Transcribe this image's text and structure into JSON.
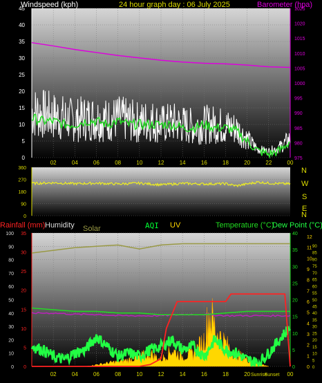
{
  "header": {
    "title": "24 hour graph day : 06 July 2025",
    "windspeed_label": "Windspeed (kph)",
    "barometer_label": "Barometer (hpa)"
  },
  "bottom_labels": {
    "rainfall": "Rainfall (mm)",
    "humidity": "Humidity",
    "solar": "Solar",
    "aqi": "AQI",
    "uv": "UV",
    "temperature": "Temperature (°C)",
    "dewpoint": "Dew Point (°C)",
    "sunrise": "Sunrise",
    "sunset": "Sunset"
  },
  "compass": [
    "N",
    "W",
    "S",
    "E",
    "N"
  ],
  "colors": {
    "windspeed": "#ffffff",
    "gust": "#cccccc",
    "avg_wind": "#22dd22",
    "barometer": "#dd00dd",
    "direction": "#eeee22",
    "temperature": "#22dd22",
    "dewpoint": "#22ff44",
    "humidity": "#bb22bb",
    "solar": "#999944",
    "rain": "#ff2222",
    "uv": "#ffd700",
    "aqi": "#00ff33",
    "axis_yellow": "#dddd00",
    "axis_green": "#22dd22",
    "axis_magenta": "#dd00dd"
  },
  "chart_data": [
    {
      "type": "line",
      "name": "wind_baro",
      "x_ticks": [
        "02",
        "04",
        "06",
        "08",
        "10",
        "12",
        "14",
        "16",
        "18",
        "20",
        "22",
        "00"
      ],
      "ylim_left": [
        0,
        45
      ],
      "y_ticks_left": [
        0,
        5,
        10,
        15,
        20,
        25,
        30,
        35,
        40,
        45
      ],
      "ylim_right": [
        975,
        1025
      ],
      "y_ticks_right": [
        975,
        980,
        985,
        990,
        995,
        1000,
        1005,
        1010,
        1015,
        1020,
        1025
      ],
      "series": [
        {
          "axis": "right",
          "x": [
            0,
            2,
            4,
            6,
            8,
            10,
            12,
            14,
            16,
            18,
            20,
            22,
            24
          ],
          "values": [
            1013.5,
            1012.4,
            1011.2,
            1010.2,
            1009.2,
            1008.4,
            1007.6,
            1007.0,
            1006.6,
            1006.4,
            1006.0,
            1005.4,
            1005.2
          ]
        },
        {
          "axis": "left",
          "x": [
            0,
            1,
            2,
            3,
            4,
            5,
            6,
            7,
            8,
            9,
            10,
            11,
            12,
            13,
            14,
            15,
            16,
            17,
            18,
            19,
            20,
            21,
            22,
            23,
            24
          ],
          "values": [
            22,
            21,
            20,
            19,
            18,
            19,
            19,
            18,
            19,
            18,
            17,
            18,
            16,
            17,
            16,
            15,
            16,
            16,
            15,
            14,
            9,
            4,
            3,
            5,
            9
          ]
        },
        {
          "axis": "left",
          "x": [
            0,
            1,
            2,
            3,
            4,
            5,
            6,
            7,
            8,
            9,
            10,
            11,
            12,
            13,
            14,
            15,
            16,
            17,
            18,
            19,
            20,
            21,
            22,
            23,
            24
          ],
          "values": [
            12,
            11,
            11,
            10,
            10,
            11,
            11,
            10,
            11,
            10,
            10,
            10,
            10,
            10,
            9,
            9,
            10,
            9,
            9,
            8,
            5,
            2,
            1,
            2,
            5
          ]
        }
      ]
    },
    {
      "type": "line",
      "name": "direction",
      "ylim": [
        0,
        360
      ],
      "y_ticks": [
        0,
        90,
        180,
        270,
        360
      ],
      "series": [
        {
          "x": [
            0,
            2,
            4,
            6,
            8,
            10,
            12,
            14,
            16,
            18,
            19,
            20,
            21,
            22,
            24
          ],
          "values": [
            240,
            245,
            238,
            242,
            236,
            242,
            230,
            240,
            236,
            238,
            222,
            236,
            250,
            242,
            236
          ]
        }
      ]
    },
    {
      "type": "line",
      "name": "temperature_rain",
      "x_ticks": [
        "02",
        "04",
        "06",
        "08",
        "10",
        "12",
        "14",
        "16",
        "18",
        "20",
        "Sunrise",
        "Sunset",
        "00"
      ],
      "ylim_rain": [
        0,
        35
      ],
      "y_ticks_rain": [
        0,
        5,
        10,
        15,
        20,
        25,
        30,
        35
      ],
      "ylim_humidity": [
        0,
        100
      ],
      "y_ticks_humidity": [
        0,
        10,
        20,
        30,
        40,
        50,
        60,
        70,
        80,
        90,
        100
      ],
      "ylim_temp": [
        0,
        40
      ],
      "y_ticks_temp": [
        0,
        5,
        10,
        15,
        20,
        25,
        30,
        35,
        40
      ],
      "y_ticks_dew": [
        0,
        1,
        2,
        3,
        4,
        5,
        6,
        7,
        8,
        9,
        10,
        11,
        12
      ],
      "y_ticks_uv": [
        0,
        5,
        10,
        15,
        20,
        25,
        30,
        35,
        40,
        45,
        50,
        55,
        60,
        65,
        70,
        75,
        80,
        85,
        90
      ],
      "series": [
        {
          "axis": "humidity",
          "x": [
            0,
            2,
            4,
            6,
            8,
            10,
            12,
            14,
            16,
            18,
            20,
            22,
            24
          ],
          "values": [
            85,
            87,
            89,
            90,
            91,
            88,
            91,
            92,
            92,
            92,
            92,
            92,
            92
          ]
        },
        {
          "axis": "humidity",
          "x": [
            0,
            2,
            4,
            6,
            8,
            10,
            12,
            14,
            16,
            18,
            20,
            22,
            24
          ],
          "values": [
            40,
            40,
            39,
            39,
            38,
            38,
            38,
            39,
            39,
            38,
            38,
            38,
            38
          ]
        },
        {
          "axis": "temp",
          "x": [
            0,
            2,
            4,
            6,
            8,
            10,
            12,
            14,
            16,
            18,
            20,
            22,
            24
          ],
          "values": [
            17.5,
            17.0,
            16.5,
            16.5,
            16.0,
            16.0,
            15.5,
            15.5,
            15.5,
            16.0,
            16.5,
            16.5,
            16.5
          ]
        },
        {
          "axis": "temp",
          "x": [
            0,
            1,
            2,
            3,
            4,
            5,
            6,
            7,
            8,
            9,
            10,
            11,
            12,
            13,
            14,
            15,
            16,
            17,
            18,
            19,
            20,
            21,
            22,
            23,
            24
          ],
          "values": [
            6,
            5,
            3,
            2,
            4,
            5,
            9,
            6,
            3,
            4,
            3,
            5,
            6,
            8,
            5,
            6,
            3,
            8,
            5,
            4,
            2,
            1,
            4,
            8,
            12
          ]
        },
        {
          "axis": "rain",
          "x": [
            0,
            10,
            11,
            12,
            12.5,
            13.5,
            18,
            18.5,
            19.5,
            23.5,
            24
          ],
          "values": [
            0,
            0,
            0.5,
            2,
            10,
            17,
            17,
            19,
            19,
            19,
            0
          ]
        },
        {
          "axis": "rain",
          "x": [
            5,
            6,
            7,
            8,
            9,
            10,
            11,
            12,
            13,
            14,
            15,
            16,
            16.5,
            17,
            17.5,
            18,
            18.5,
            19,
            20,
            21,
            22
          ],
          "values": [
            0,
            0.5,
            1,
            1.5,
            2,
            3,
            4,
            2,
            5,
            3,
            4,
            8,
            17,
            12,
            9,
            7,
            5,
            4,
            2,
            1,
            0
          ]
        }
      ]
    }
  ]
}
